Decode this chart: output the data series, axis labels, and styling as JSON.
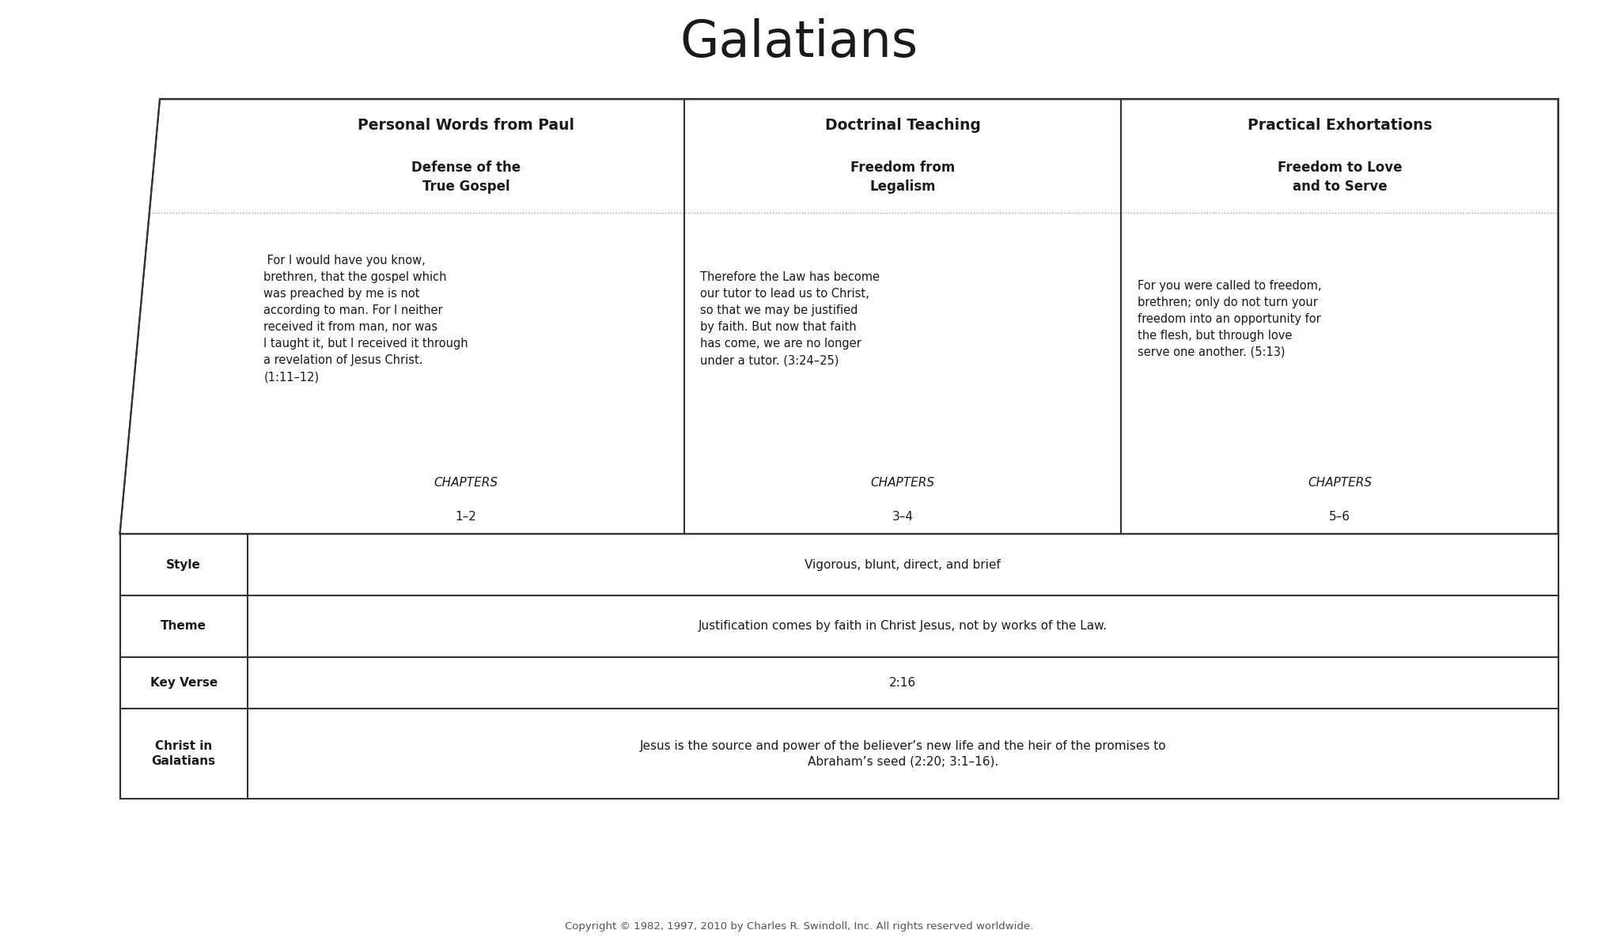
{
  "title": "Galatians",
  "background_color": "#ffffff",
  "text_color": "#1a1a1a",
  "border_color": "#333333",
  "col_headers": [
    "Personal Words from Paul",
    "Doctrinal Teaching",
    "Practical Exhortations"
  ],
  "col_subheaders": [
    "Defense of the\nTrue Gospel",
    "Freedom from\nLegalism",
    "Freedom to Love\nand to Serve"
  ],
  "col_quotes": [
    " For I would have you know,\nbrethren, that the gospel which\nwas preached by me is not\naccording to man. For I neither\nreceived it from man, nor was\nI taught it, but I received it through\na revelation of Jesus Christ.\n(1:11–12)",
    "Therefore the Law has become\nour tutor to lead us to Christ,\nso that we may be justified\nby faith. But now that faith\nhas come, we are no longer\nunder a tutor. (3:24–25)",
    "For you were called to freedom,\nbrethren; only do not turn your\nfreedom into an opportunity for\nthe flesh, but through love\nserve one another. (5:13)"
  ],
  "col_chapters_label": "CHAPTERS",
  "col_chapters": [
    "1–2",
    "3–4",
    "5–6"
  ],
  "rows": [
    {
      "label": "Style",
      "value": "Vigorous, blunt, direct, and brief"
    },
    {
      "label": "Theme",
      "value": "Justification comes by faith in Christ Jesus, not by works of the Law."
    },
    {
      "label": "Key Verse",
      "value": "2:16"
    },
    {
      "label": "Christ in\nGalatians",
      "value": "Jesus is the source and power of the believer’s new life and the heir of the promises to\nAbraham’s seed (2:20; 3:1–16)."
    }
  ],
  "copyright": "Copyright © 1982, 1997, 2010 by Charles R. Swindoll, Inc. All rights reserved worldwide."
}
